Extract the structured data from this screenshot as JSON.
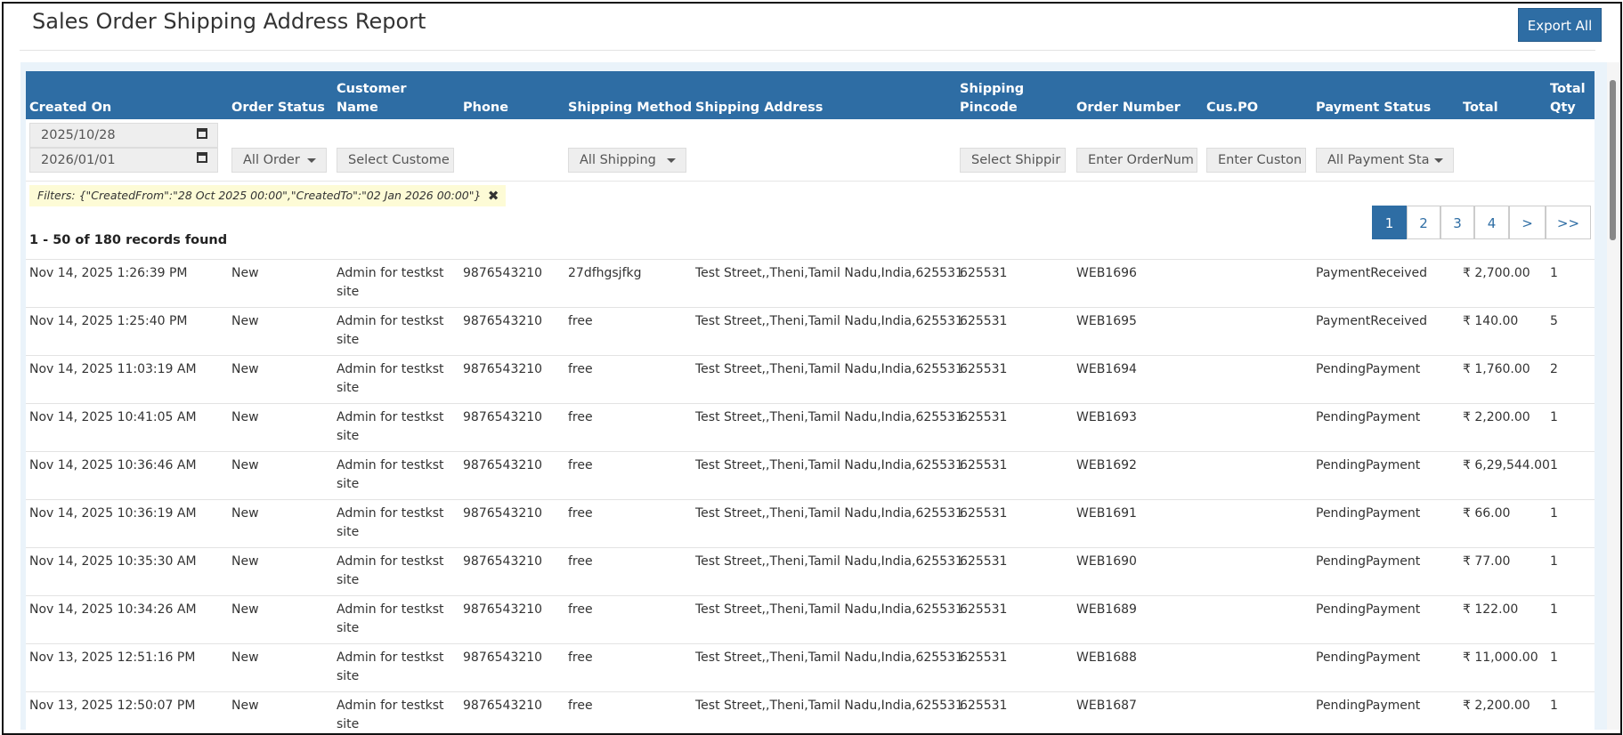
{
  "header": {
    "title": "Sales Order Shipping Address Report",
    "export_button": "Export All"
  },
  "table": {
    "columns": [
      {
        "key": "created_on",
        "label": "Created On"
      },
      {
        "key": "order_status",
        "label": "Order Status"
      },
      {
        "key": "customer_name",
        "label": "Customer Name"
      },
      {
        "key": "phone",
        "label": "Phone"
      },
      {
        "key": "shipping_method",
        "label": "Shipping Method"
      },
      {
        "key": "shipping_address",
        "label": "Shipping Address"
      },
      {
        "key": "shipping_pincode",
        "label": "Shipping Pincode"
      },
      {
        "key": "order_number",
        "label": "Order Number"
      },
      {
        "key": "cus_po",
        "label": "Cus.PO"
      },
      {
        "key": "payment_status",
        "label": "Payment Status"
      },
      {
        "key": "total",
        "label": "Total"
      },
      {
        "key": "total_qty",
        "label": "Total Qty"
      }
    ],
    "filters": {
      "created_from": "2025/10/28",
      "created_to": "2026/01/01",
      "order_status": "All Order",
      "customer_name": "Select Custome",
      "shipping_method": "All Shipping",
      "shipping_pincode": "Select Shippir",
      "order_number": "Enter OrderNum",
      "cus_po": "Enter Custon",
      "payment_status": "All Payment Sta"
    },
    "applied_filters": "Filters: {\"CreatedFrom\":\"28 Oct 2025 00:00\",\"CreatedTo\":\"02 Jan 2026 00:00\"}",
    "records_found": "1 - 50 of 180 records found",
    "pagination": [
      "1",
      "2",
      "3",
      "4",
      ">",
      ">>"
    ],
    "rows": [
      {
        "created_on": "Nov 14, 2025 1:26:39 PM",
        "order_status": "New",
        "customer_name": "Admin for testkst site",
        "phone": "9876543210",
        "shipping_method": "27dfhgsjfkg",
        "shipping_address": "Test Street,,Theni,Tamil Nadu,India,625531",
        "shipping_pincode": "625531",
        "order_number": "WEB1696",
        "payment_status": "PaymentReceived",
        "total": "₹ 2,700.00",
        "total_qty": 1
      },
      {
        "created_on": "Nov 14, 2025 1:25:40 PM",
        "order_status": "New",
        "customer_name": "Admin for testkst site",
        "phone": "9876543210",
        "shipping_method": "free",
        "shipping_address": "Test Street,,Theni,Tamil Nadu,India,625531",
        "shipping_pincode": "625531",
        "order_number": "WEB1695",
        "payment_status": "PaymentReceived",
        "total": "₹ 140.00",
        "total_qty": 5
      },
      {
        "created_on": "Nov 14, 2025 11:03:19 AM",
        "order_status": "New",
        "customer_name": "Admin for testkst site",
        "phone": "9876543210",
        "shipping_method": "free",
        "shipping_address": "Test Street,,Theni,Tamil Nadu,India,625531",
        "shipping_pincode": "625531",
        "order_number": "WEB1694",
        "payment_status": "PendingPayment",
        "total": "₹ 1,760.00",
        "total_qty": 2
      },
      {
        "created_on": "Nov 14, 2025 10:41:05 AM",
        "order_status": "New",
        "customer_name": "Admin for testkst site",
        "phone": "9876543210",
        "shipping_method": "free",
        "shipping_address": "Test Street,,Theni,Tamil Nadu,India,625531",
        "shipping_pincode": "625531",
        "order_number": "WEB1693",
        "payment_status": "PendingPayment",
        "total": "₹ 2,200.00",
        "total_qty": 1
      },
      {
        "created_on": "Nov 14, 2025 10:36:46 AM",
        "order_status": "New",
        "customer_name": "Admin for testkst site",
        "phone": "9876543210",
        "shipping_method": "free",
        "shipping_address": "Test Street,,Theni,Tamil Nadu,India,625531",
        "shipping_pincode": "625531",
        "order_number": "WEB1692",
        "payment_status": "PendingPayment",
        "total": "₹ 6,29,544.00",
        "total_qty": 1
      },
      {
        "created_on": "Nov 14, 2025 10:36:19 AM",
        "order_status": "New",
        "customer_name": "Admin for testkst site",
        "phone": "9876543210",
        "shipping_method": "free",
        "shipping_address": "Test Street,,Theni,Tamil Nadu,India,625531",
        "shipping_pincode": "625531",
        "order_number": "WEB1691",
        "payment_status": "PendingPayment",
        "total": "₹ 66.00",
        "total_qty": 1
      },
      {
        "created_on": "Nov 14, 2025 10:35:30 AM",
        "order_status": "New",
        "customer_name": "Admin for testkst site",
        "phone": "9876543210",
        "shipping_method": "free",
        "shipping_address": "Test Street,,Theni,Tamil Nadu,India,625531",
        "shipping_pincode": "625531",
        "order_number": "WEB1690",
        "payment_status": "PendingPayment",
        "total": "₹ 77.00",
        "total_qty": 1
      },
      {
        "created_on": "Nov 14, 2025 10:34:26 AM",
        "order_status": "New",
        "customer_name": "Admin for testkst site",
        "phone": "9876543210",
        "shipping_method": "free",
        "shipping_address": "Test Street,,Theni,Tamil Nadu,India,625531",
        "shipping_pincode": "625531",
        "order_number": "WEB1689",
        "payment_status": "PendingPayment",
        "total": "₹ 122.00",
        "total_qty": 1
      },
      {
        "created_on": "Nov 13, 2025 12:51:16 PM",
        "order_status": "New",
        "customer_name": "Admin for testkst site",
        "phone": "9876543210",
        "shipping_method": "free",
        "shipping_address": "Test Street,,Theni,Tamil Nadu,India,625531",
        "shipping_pincode": "625531",
        "order_number": "WEB1688",
        "payment_status": "PendingPayment",
        "total": "₹ 11,000.00",
        "total_qty": 1
      },
      {
        "created_on": "Nov 13, 2025 12:50:07 PM",
        "order_status": "New",
        "customer_name": "Admin for testkst site",
        "phone": "9876543210",
        "shipping_method": "free",
        "shipping_address": "Test Street,,Theni,Tamil Nadu,India,625531",
        "shipping_pincode": "625531",
        "order_number": "WEB1687",
        "payment_status": "PendingPayment",
        "total": "₹ 2,200.00",
        "total_qty": 1
      }
    ]
  }
}
